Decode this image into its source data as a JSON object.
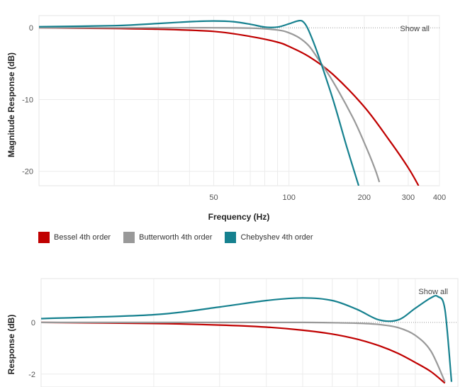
{
  "chart_data": [
    {
      "type": "line",
      "xlabel": "Frequency (Hz)",
      "ylabel": "Magnitude Response (dB)",
      "x_scale": "log",
      "xlim": [
        10,
        400
      ],
      "ylim": [
        -22,
        1.7
      ],
      "x_ticks": [
        50,
        100,
        200,
        300,
        400
      ],
      "y_ticks": [
        0,
        -10,
        -20
      ],
      "grid": true,
      "show_all_label": "Show all",
      "series": [
        {
          "name": "Bessel 4th order",
          "color": "#c00000",
          "x": [
            10,
            20,
            30,
            50,
            70,
            90,
            100,
            120,
            150,
            200,
            250,
            300,
            330
          ],
          "y": [
            0,
            -0.1,
            -0.2,
            -0.5,
            -1.2,
            -2.0,
            -2.6,
            -4.0,
            -6.5,
            -11,
            -15.5,
            -19.5,
            -22
          ]
        },
        {
          "name": "Butterworth 4th order",
          "color": "#999999",
          "x": [
            10,
            30,
            50,
            70,
            90,
            100,
            110,
            120,
            130,
            150,
            180,
            200,
            220,
            230
          ],
          "y": [
            0,
            0,
            0,
            -0.05,
            -0.3,
            -0.7,
            -1.4,
            -2.5,
            -4.2,
            -7.5,
            -12.5,
            -16,
            -19.5,
            -21.5
          ]
        },
        {
          "name": "Chebyshev 4th order",
          "color": "#16818f",
          "x": [
            10,
            20,
            30,
            40,
            50,
            60,
            70,
            80,
            90,
            100,
            110,
            115,
            120,
            130,
            150,
            170,
            190
          ],
          "y": [
            0.15,
            0.3,
            0.6,
            0.85,
            0.95,
            0.85,
            0.5,
            0.1,
            0.1,
            0.55,
            1.0,
            0.7,
            -0.4,
            -3.5,
            -10,
            -16.5,
            -22
          ]
        }
      ]
    },
    {
      "type": "line",
      "xlabel": "",
      "ylabel": "Response (dB)",
      "x_scale": "log",
      "xlim": [
        10,
        130
      ],
      "ylim": [
        -2.5,
        1.7
      ],
      "y_ticks": [
        0,
        -2
      ],
      "grid": true,
      "show_all_label": "Show all",
      "series": [
        {
          "name": "Bessel 4th order",
          "color": "#c00000",
          "x": [
            10,
            20,
            30,
            40,
            50,
            60,
            70,
            80,
            90,
            100,
            110,
            120
          ],
          "y": [
            0,
            -0.04,
            -0.1,
            -0.18,
            -0.3,
            -0.45,
            -0.65,
            -0.9,
            -1.2,
            -1.55,
            -1.9,
            -2.35
          ]
        },
        {
          "name": "Butterworth 4th order",
          "color": "#999999",
          "x": [
            10,
            30,
            50,
            60,
            70,
            80,
            90,
            100,
            110,
            120
          ],
          "y": [
            0,
            0,
            0,
            -0.01,
            -0.03,
            -0.08,
            -0.2,
            -0.5,
            -1.1,
            -2.3
          ]
        },
        {
          "name": "Chebyshev 4th order",
          "color": "#16818f",
          "x": [
            10,
            20,
            30,
            40,
            50,
            60,
            70,
            80,
            90,
            100,
            110,
            115,
            120,
            125
          ],
          "y": [
            0.15,
            0.3,
            0.6,
            0.85,
            0.95,
            0.85,
            0.5,
            0.1,
            0.1,
            0.55,
            0.95,
            1.0,
            0.5,
            -2.3
          ]
        }
      ]
    }
  ],
  "legend": [
    {
      "label": "Bessel 4th order",
      "color": "#c00000"
    },
    {
      "label": "Butterworth 4th order",
      "color": "#999999"
    },
    {
      "label": "Chebyshev 4th order",
      "color": "#16818f"
    }
  ]
}
